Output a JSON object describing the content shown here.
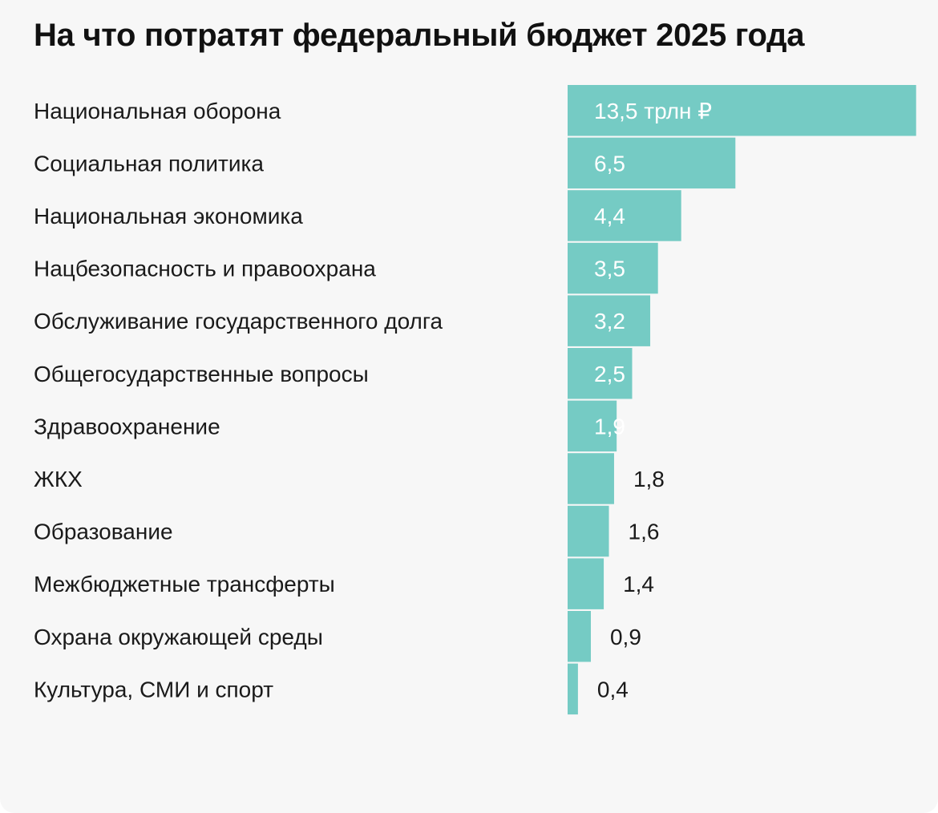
{
  "chart_data": {
    "type": "bar",
    "orientation": "horizontal",
    "title": "На что потратят федеральный бюджет 2025 года",
    "unit_label": "трлн ₽",
    "bar_color": "#75cbc4",
    "categories": [
      "Национальная оборона",
      "Социальная политика",
      "Национальная экономика",
      "Нацбезопасность и правоохрана",
      "Обслуживание государственного долга",
      "Общегосударственные вопросы",
      "Здравоохранение",
      "ЖКХ",
      "Образование",
      "Межбюджетные трансферты",
      "Охрана окружающей среды",
      "Культура, СМИ и спорт"
    ],
    "values": [
      13.5,
      6.5,
      4.4,
      3.5,
      3.2,
      2.5,
      1.9,
      1.8,
      1.6,
      1.4,
      0.9,
      0.4
    ],
    "value_labels": [
      "13,5 трлн ₽",
      "6,5",
      "4,4",
      "3,5",
      "3,2",
      "2,5",
      "1,9",
      "1,8",
      "1,6",
      "1,4",
      "0,9",
      "0,4"
    ],
    "axes_visible": false,
    "grid": false,
    "legend": "none"
  }
}
